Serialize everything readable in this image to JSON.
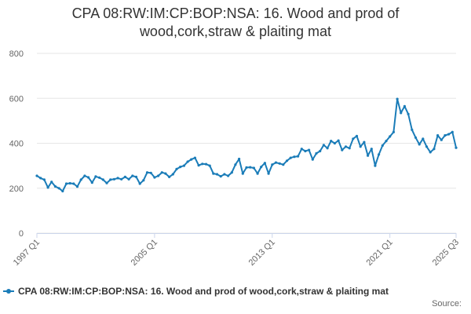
{
  "title_line1": "CPA 08:RW:IM:CP:BOP:NSA: 16. Wood and prod of",
  "title_line2": "wood,cork,straw & plaiting mat",
  "legend_label": "CPA 08:RW:IM:CP:BOP:NSA: 16. Wood and prod of wood,cork,straw & plaiting mat",
  "credits": "Source:",
  "series_color": "#1a7cb8",
  "chart_data": {
    "type": "line",
    "ylim": [
      0,
      800
    ],
    "yticks": [
      0,
      200,
      400,
      600,
      800
    ],
    "xticks": [
      "1997 Q1",
      "2005 Q1",
      "2013 Q1",
      "2021 Q1",
      "2025 Q3"
    ],
    "x_start": "1997 Q1",
    "x_end": "2025 Q3",
    "grid": true,
    "legend_position": "bottom",
    "series": [
      {
        "name": "CPA 08:RW:IM:CP:BOP:NSA: 16. Wood and prod of wood,cork,straw & plaiting mat",
        "x": [
          "1997 Q1",
          "1997 Q2",
          "1997 Q3",
          "1997 Q4",
          "1998 Q1",
          "1998 Q2",
          "1998 Q3",
          "1998 Q4",
          "1999 Q1",
          "1999 Q2",
          "1999 Q3",
          "1999 Q4",
          "2000 Q1",
          "2000 Q2",
          "2000 Q3",
          "2000 Q4",
          "2001 Q1",
          "2001 Q2",
          "2001 Q3",
          "2001 Q4",
          "2002 Q1",
          "2002 Q2",
          "2002 Q3",
          "2002 Q4",
          "2003 Q1",
          "2003 Q2",
          "2003 Q3",
          "2003 Q4",
          "2004 Q1",
          "2004 Q2",
          "2004 Q3",
          "2004 Q4",
          "2005 Q1",
          "2005 Q2",
          "2005 Q3",
          "2005 Q4",
          "2006 Q1",
          "2006 Q2",
          "2006 Q3",
          "2006 Q4",
          "2007 Q1",
          "2007 Q2",
          "2007 Q3",
          "2007 Q4",
          "2008 Q1",
          "2008 Q2",
          "2008 Q3",
          "2008 Q4",
          "2009 Q1",
          "2009 Q2",
          "2009 Q3",
          "2009 Q4",
          "2010 Q1",
          "2010 Q2",
          "2010 Q3",
          "2010 Q4",
          "2011 Q1",
          "2011 Q2",
          "2011 Q3",
          "2011 Q4",
          "2012 Q1",
          "2012 Q2",
          "2012 Q3",
          "2012 Q4",
          "2013 Q1",
          "2013 Q2",
          "2013 Q3",
          "2013 Q4",
          "2014 Q1",
          "2014 Q2",
          "2014 Q3",
          "2014 Q4",
          "2015 Q1",
          "2015 Q2",
          "2015 Q3",
          "2015 Q4",
          "2016 Q1",
          "2016 Q2",
          "2016 Q3",
          "2016 Q4",
          "2017 Q1",
          "2017 Q2",
          "2017 Q3",
          "2017 Q4",
          "2018 Q1",
          "2018 Q2",
          "2018 Q3",
          "2018 Q4",
          "2019 Q1",
          "2019 Q2",
          "2019 Q3",
          "2019 Q4",
          "2020 Q1",
          "2020 Q2",
          "2020 Q3",
          "2020 Q4",
          "2021 Q1",
          "2021 Q2",
          "2021 Q3",
          "2021 Q4",
          "2022 Q1",
          "2022 Q2",
          "2022 Q3",
          "2022 Q4",
          "2023 Q1",
          "2023 Q2",
          "2023 Q3",
          "2023 Q4",
          "2024 Q1",
          "2024 Q2",
          "2024 Q3",
          "2024 Q4",
          "2025 Q1",
          "2025 Q2",
          "2025 Q3"
        ],
        "values": [
          255,
          245,
          238,
          203,
          228,
          208,
          200,
          187,
          220,
          222,
          220,
          207,
          238,
          255,
          248,
          225,
          252,
          247,
          238,
          223,
          238,
          240,
          245,
          240,
          250,
          240,
          255,
          250,
          220,
          235,
          270,
          268,
          248,
          255,
          270,
          265,
          250,
          262,
          285,
          295,
          300,
          318,
          328,
          335,
          302,
          308,
          307,
          300,
          265,
          262,
          253,
          262,
          255,
          270,
          305,
          330,
          265,
          292,
          293,
          290,
          265,
          295,
          312,
          265,
          305,
          314,
          310,
          305,
          322,
          335,
          340,
          342,
          375,
          365,
          370,
          328,
          355,
          365,
          392,
          378,
          410,
          400,
          412,
          370,
          385,
          378,
          420,
          432,
          385,
          405,
          345,
          375,
          300,
          350,
          390,
          410,
          430,
          450,
          597,
          535,
          565,
          530,
          460,
          425,
          395,
          420,
          385,
          360,
          375,
          435,
          415,
          435,
          440,
          450,
          380
        ]
      }
    ]
  }
}
